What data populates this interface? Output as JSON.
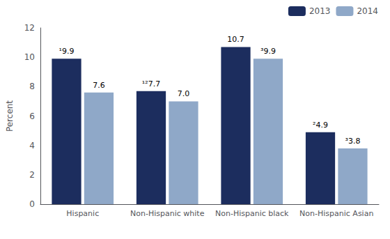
{
  "chart_data": {
    "type": "bar",
    "categories": [
      "Hispanic",
      "Non-Hispanic white",
      "Non-Hispanic black",
      "Non-Hispanic Asian"
    ],
    "series": [
      {
        "name": "2013",
        "color": "#1c2d5e",
        "values": [
          9.9,
          7.7,
          10.7,
          4.9
        ],
        "value_labels": [
          "¹9.9",
          "¹²7.7",
          "10.7",
          "²4.9"
        ]
      },
      {
        "name": "2014",
        "color": "#8fa8c8",
        "values": [
          7.6,
          7.0,
          9.9,
          3.8
        ],
        "value_labels": [
          "7.6",
          "7.0",
          "³9.9",
          "³3.8"
        ]
      }
    ],
    "ylabel": "Percent",
    "ylim": [
      0,
      12
    ],
    "yticks": [
      0,
      2,
      4,
      6,
      8,
      10,
      12
    ],
    "grid": false,
    "legend": "top-right",
    "data_labels": true
  }
}
